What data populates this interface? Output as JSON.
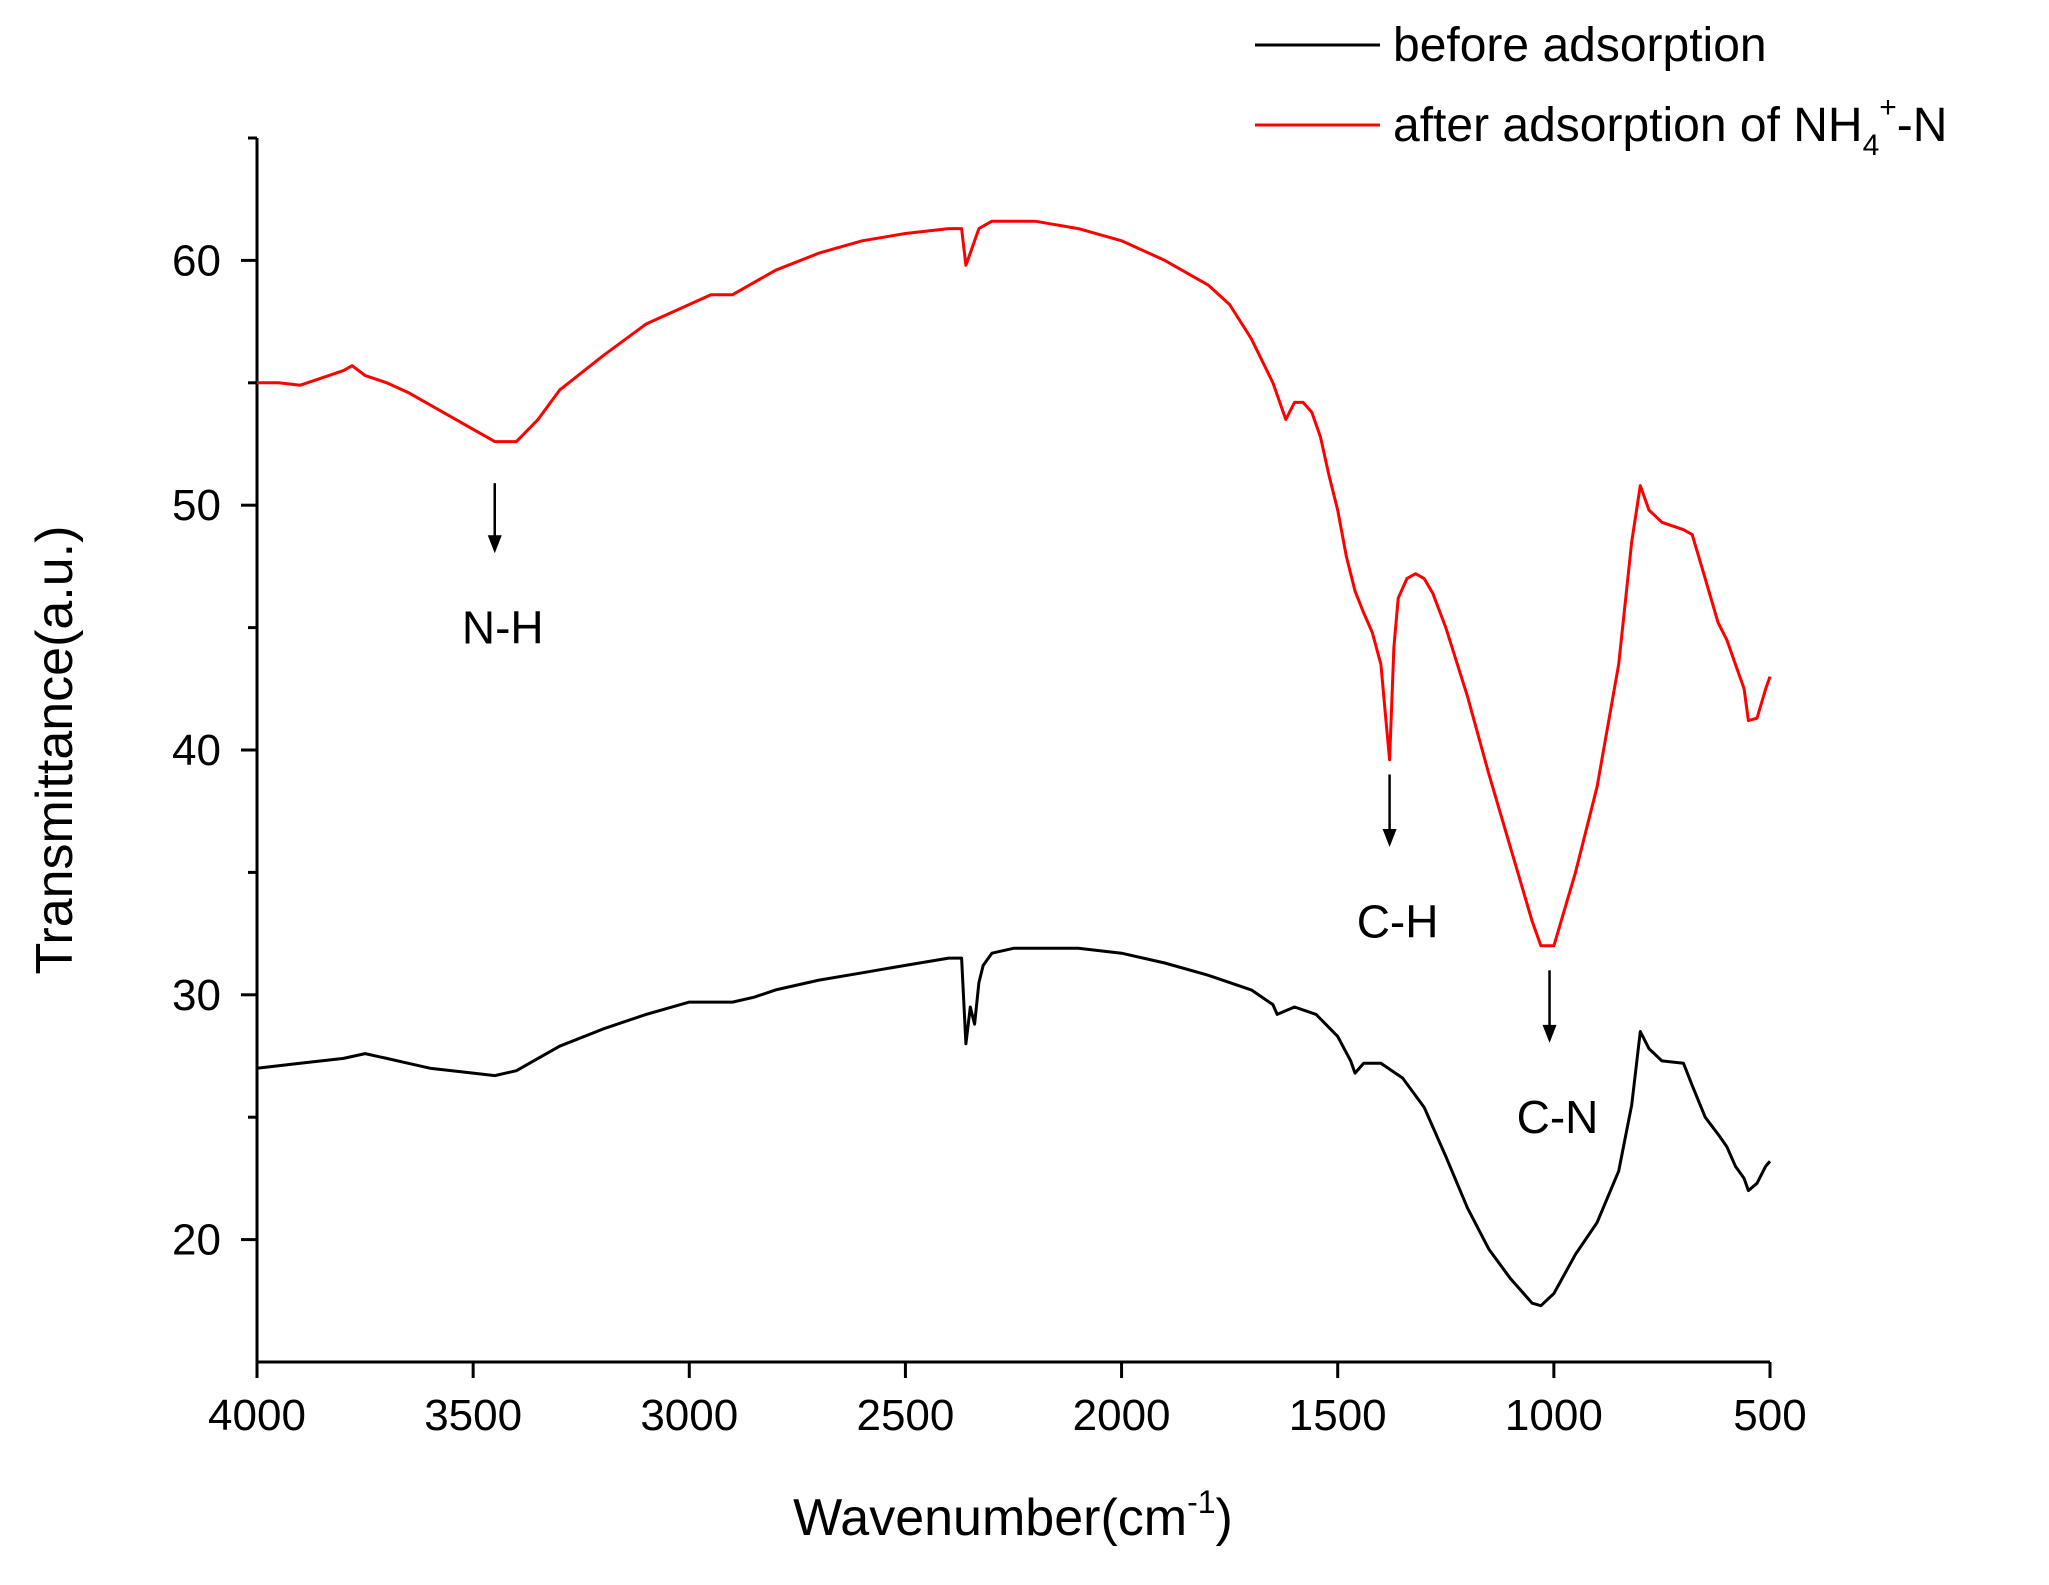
{
  "chart_data": {
    "type": "line",
    "title": "",
    "xlabel": "Wavenumber(cm",
    "xlabel_sup": "-1",
    "xlabel_close": ")",
    "ylabel": "Transmittance(a.u.)",
    "xlim": [
      4000,
      500
    ],
    "ylim": [
      15,
      65
    ],
    "x_ticks": [
      "4000",
      "3500",
      "3000",
      "2500",
      "2000",
      "1500",
      "1000",
      "500"
    ],
    "y_ticks": [
      "20",
      "30",
      "40",
      "50",
      "60"
    ],
    "legend_position": "top-right",
    "series": [
      {
        "name": "before adsorption",
        "legend_parts": [
          "before adsorption"
        ],
        "color": "#000000",
        "x": [
          4000,
          3900,
          3800,
          3750,
          3700,
          3650,
          3600,
          3500,
          3450,
          3400,
          3350,
          3300,
          3200,
          3100,
          3000,
          2950,
          2900,
          2850,
          2800,
          2700,
          2600,
          2500,
          2400,
          2370,
          2360,
          2350,
          2340,
          2330,
          2320,
          2300,
          2250,
          2200,
          2100,
          2000,
          1900,
          1800,
          1700,
          1650,
          1640,
          1600,
          1550,
          1500,
          1470,
          1460,
          1440,
          1400,
          1350,
          1300,
          1250,
          1200,
          1150,
          1100,
          1050,
          1030,
          1000,
          950,
          900,
          850,
          820,
          800,
          780,
          750,
          700,
          680,
          650,
          620,
          600,
          580,
          560,
          550,
          530,
          510,
          500
        ],
        "values": [
          27.0,
          27.2,
          27.4,
          27.6,
          27.4,
          27.2,
          27.0,
          26.8,
          26.7,
          26.9,
          27.4,
          27.9,
          28.6,
          29.2,
          29.7,
          29.7,
          29.7,
          29.9,
          30.2,
          30.6,
          30.9,
          31.2,
          31.5,
          31.5,
          28.0,
          29.5,
          28.8,
          30.5,
          31.2,
          31.7,
          31.9,
          31.9,
          31.9,
          31.7,
          31.3,
          30.8,
          30.2,
          29.6,
          29.2,
          29.5,
          29.2,
          28.3,
          27.3,
          26.8,
          27.2,
          27.2,
          26.6,
          25.4,
          23.4,
          21.3,
          19.6,
          18.4,
          17.4,
          17.3,
          17.8,
          19.4,
          20.7,
          22.8,
          25.5,
          28.5,
          27.8,
          27.3,
          27.2,
          26.3,
          25.0,
          24.3,
          23.8,
          23.0,
          22.5,
          22.0,
          22.3,
          23.0,
          23.2
        ]
      },
      {
        "name": "after adsorption of NH4+-N",
        "legend_parts": [
          "after adsorption of NH",
          "4",
          "+",
          "-N"
        ],
        "color": "#ff0000",
        "x": [
          4000,
          3950,
          3900,
          3850,
          3800,
          3780,
          3750,
          3700,
          3650,
          3600,
          3550,
          3500,
          3450,
          3400,
          3350,
          3300,
          3200,
          3100,
          3000,
          2950,
          2900,
          2850,
          2800,
          2700,
          2600,
          2500,
          2400,
          2370,
          2360,
          2350,
          2340,
          2330,
          2300,
          2250,
          2200,
          2100,
          2000,
          1900,
          1800,
          1750,
          1700,
          1650,
          1620,
          1600,
          1580,
          1560,
          1540,
          1520,
          1500,
          1480,
          1460,
          1440,
          1420,
          1400,
          1390,
          1380,
          1370,
          1360,
          1340,
          1320,
          1300,
          1280,
          1250,
          1200,
          1150,
          1100,
          1050,
          1030,
          1000,
          950,
          900,
          850,
          820,
          800,
          780,
          750,
          700,
          680,
          650,
          620,
          600,
          580,
          560,
          550,
          530,
          510,
          500
        ],
        "values": [
          55.0,
          55.0,
          54.9,
          55.2,
          55.5,
          55.7,
          55.3,
          55.0,
          54.6,
          54.1,
          53.6,
          53.1,
          52.6,
          52.6,
          53.5,
          54.7,
          56.1,
          57.4,
          58.2,
          58.6,
          58.6,
          59.1,
          59.6,
          60.3,
          60.8,
          61.1,
          61.3,
          61.3,
          59.8,
          60.3,
          60.8,
          61.3,
          61.6,
          61.6,
          61.6,
          61.3,
          60.8,
          60.0,
          59.0,
          58.2,
          56.8,
          55.0,
          53.5,
          54.2,
          54.2,
          53.8,
          52.8,
          51.2,
          49.8,
          47.9,
          46.5,
          45.6,
          44.8,
          43.5,
          41.5,
          39.6,
          44.2,
          46.2,
          47.0,
          47.2,
          47.0,
          46.4,
          45.0,
          42.2,
          39.0,
          36.0,
          33.0,
          32.0,
          32.0,
          35.0,
          38.5,
          43.5,
          48.5,
          50.8,
          49.8,
          49.3,
          49.0,
          48.8,
          47.0,
          45.2,
          44.5,
          43.5,
          42.5,
          41.2,
          41.3,
          42.5,
          43.0
        ]
      }
    ],
    "annotations": [
      {
        "label": "N-H",
        "x": 3450,
        "arrow_from": 50.9,
        "arrow_to": 48.2,
        "text_y": 45.0
      },
      {
        "label": "C-H",
        "x": 1380,
        "arrow_from": 39.0,
        "arrow_to": 36.2,
        "text_y": 33.0
      },
      {
        "label": "C-N",
        "x": 1010,
        "arrow_from": 31.0,
        "arrow_to": 28.2,
        "text_y": 25.0
      }
    ]
  }
}
